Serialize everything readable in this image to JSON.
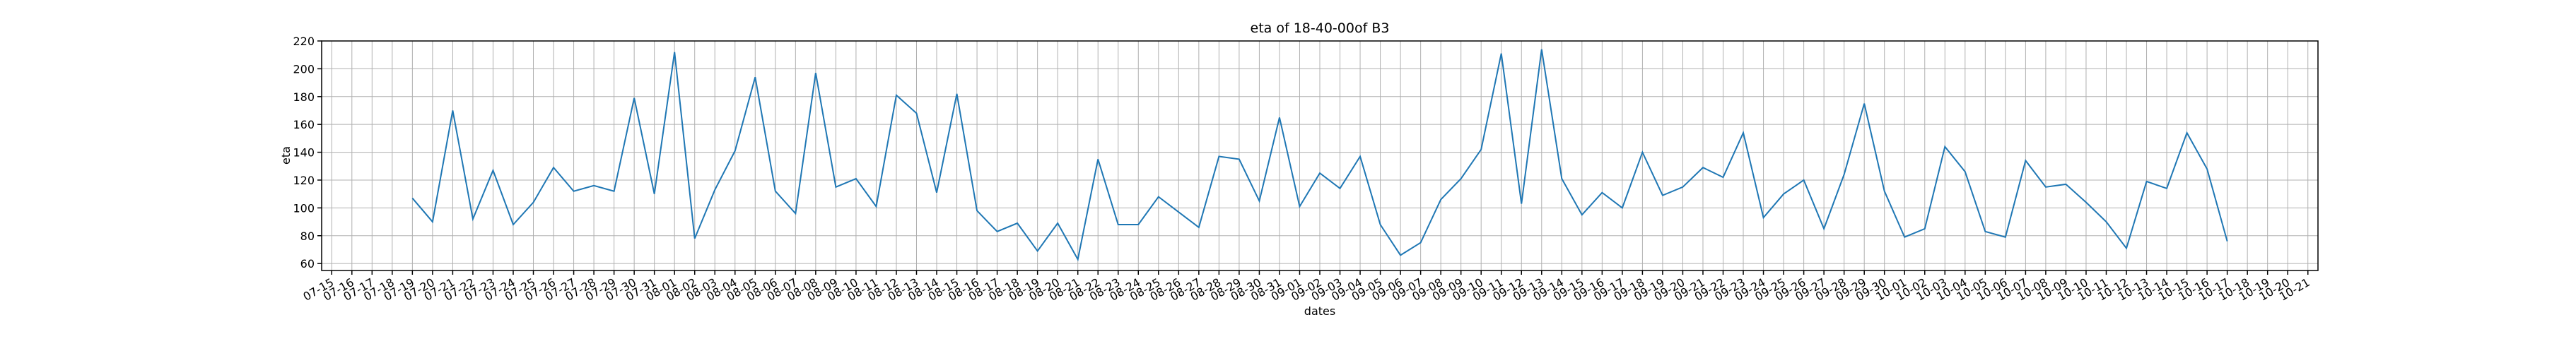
{
  "chart_data": {
    "type": "line",
    "title": "eta of 18-40-00of B3",
    "xlabel": "dates",
    "ylabel": "eta",
    "categories": [
      "07-15",
      "07-16",
      "07-17",
      "07-18",
      "07-19",
      "07-20",
      "07-21",
      "07-22",
      "07-23",
      "07-24",
      "07-25",
      "07-26",
      "07-27",
      "07-28",
      "07-29",
      "07-30",
      "07-31",
      "08-01",
      "08-02",
      "08-03",
      "08-04",
      "08-05",
      "08-06",
      "08-07",
      "08-08",
      "08-09",
      "08-10",
      "08-11",
      "08-12",
      "08-13",
      "08-14",
      "08-15",
      "08-16",
      "08-17",
      "08-18",
      "08-19",
      "08-20",
      "08-21",
      "08-22",
      "08-23",
      "08-24",
      "08-25",
      "08-26",
      "08-27",
      "08-28",
      "08-29",
      "08-30",
      "08-31",
      "09-01",
      "09-02",
      "09-03",
      "09-04",
      "09-05",
      "09-06",
      "09-07",
      "09-08",
      "09-09",
      "09-10",
      "09-11",
      "09-12",
      "09-13",
      "09-14",
      "09-15",
      "09-16",
      "09-17",
      "09-18",
      "09-19",
      "09-20",
      "09-21",
      "09-22",
      "09-23",
      "09-24",
      "09-25",
      "09-26",
      "09-27",
      "09-28",
      "09-29",
      "09-30",
      "10-01",
      "10-02",
      "10-03",
      "10-04",
      "10-05",
      "10-06",
      "10-07",
      "10-08",
      "10-09",
      "10-10",
      "10-11",
      "10-12",
      "10-13",
      "10-14",
      "10-15",
      "10-16",
      "10-17",
      "10-18",
      "10-19",
      "10-20",
      "10-21"
    ],
    "series": [
      {
        "name": "eta",
        "color": "#1f77b4",
        "values": [
          null,
          null,
          null,
          null,
          107,
          90,
          170,
          92,
          127,
          88,
          104,
          129,
          112,
          116,
          112,
          179,
          110,
          212,
          78,
          113,
          141,
          194,
          112,
          96,
          197,
          115,
          121,
          101,
          181,
          168,
          111,
          182,
          98,
          83,
          89,
          69,
          89,
          63,
          135,
          88,
          88,
          108,
          97,
          86,
          137,
          135,
          105,
          165,
          101,
          125,
          114,
          137,
          88,
          66,
          75,
          106,
          121,
          142,
          211,
          103,
          214,
          121,
          95,
          111,
          100,
          140,
          109,
          115,
          129,
          122,
          154,
          93,
          110,
          120,
          85,
          124,
          175,
          112,
          79,
          85,
          144,
          126,
          83,
          79,
          134,
          115,
          117,
          104,
          90,
          71,
          119,
          114,
          154,
          128,
          76,
          null,
          null,
          null,
          null
        ]
      }
    ],
    "ylim": [
      55,
      220
    ],
    "yticks": [
      60,
      80,
      100,
      120,
      140,
      160,
      180,
      200,
      220
    ],
    "grid": true
  }
}
